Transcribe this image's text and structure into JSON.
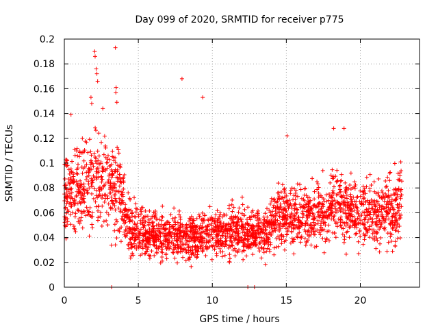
{
  "chart_data": {
    "type": "scatter",
    "title": "Day 099 of 2020, SRMTID for receiver p775",
    "xlabel": "GPS time / hours",
    "ylabel": "SRMTID / TECUs",
    "xlim": [
      0,
      24
    ],
    "ylim": [
      0,
      0.2
    ],
    "x_ticks": [
      0,
      5,
      10,
      15,
      20
    ],
    "x_tick_labels": [
      "0",
      "5",
      "10",
      "15",
      "20"
    ],
    "y_ticks": [
      0,
      0.02,
      0.04,
      0.06,
      0.08,
      0.1,
      0.12,
      0.14,
      0.16,
      0.18,
      0.2
    ],
    "y_tick_labels": [
      "0",
      "0.02",
      "0.04",
      "0.06",
      "0.08",
      "0.1",
      "0.12",
      "0.14",
      "0.16",
      "0.18",
      "0.2"
    ],
    "grid": true,
    "marker": "+",
    "series": [
      {
        "name": "SRMTID",
        "color": "#ff0000",
        "trend_hours": [
          0,
          1,
          2,
          3,
          3.8,
          4.5,
          6,
          8,
          10,
          12,
          13.5,
          14.5,
          15.5,
          16.5,
          17.5,
          18.5,
          20,
          21,
          22,
          22.8
        ],
        "trend_values": [
          0.07,
          0.082,
          0.085,
          0.083,
          0.076,
          0.047,
          0.041,
          0.04,
          0.043,
          0.045,
          0.043,
          0.057,
          0.058,
          0.055,
          0.062,
          0.066,
          0.06,
          0.058,
          0.064,
          0.066
        ],
        "outliers": [
          {
            "x": 2.05,
            "y": 0.19
          },
          {
            "x": 2.08,
            "y": 0.186
          },
          {
            "x": 3.45,
            "y": 0.193
          },
          {
            "x": 2.15,
            "y": 0.176
          },
          {
            "x": 2.2,
            "y": 0.172
          },
          {
            "x": 2.25,
            "y": 0.166
          },
          {
            "x": 3.5,
            "y": 0.161
          },
          {
            "x": 3.48,
            "y": 0.157
          },
          {
            "x": 1.8,
            "y": 0.153
          },
          {
            "x": 1.85,
            "y": 0.148
          },
          {
            "x": 3.55,
            "y": 0.149
          },
          {
            "x": 0.45,
            "y": 0.139
          },
          {
            "x": 2.6,
            "y": 0.144
          },
          {
            "x": 7.95,
            "y": 0.168
          },
          {
            "x": 9.35,
            "y": 0.153
          },
          {
            "x": 15.05,
            "y": 0.122
          },
          {
            "x": 18.2,
            "y": 0.128
          },
          {
            "x": 18.9,
            "y": 0.128
          },
          {
            "x": 3.2,
            "y": 0.0
          },
          {
            "x": 12.4,
            "y": 0.0
          },
          {
            "x": 12.85,
            "y": 0.0
          }
        ]
      }
    ]
  }
}
